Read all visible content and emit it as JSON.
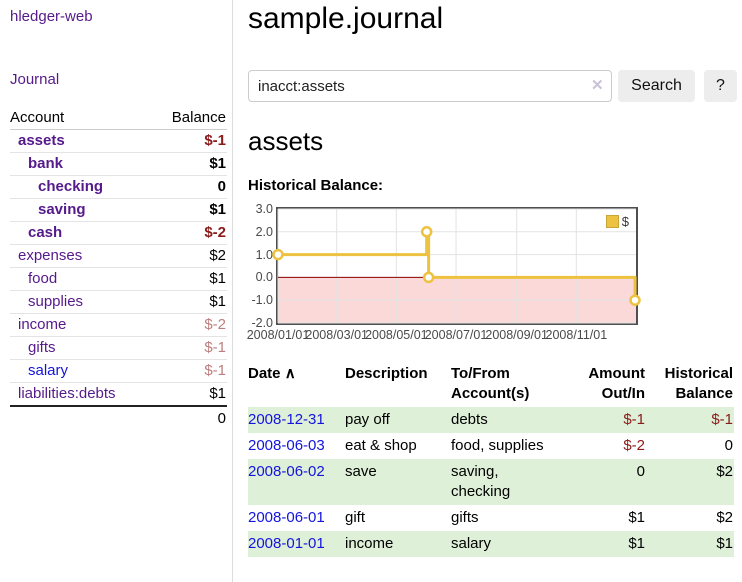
{
  "colors": {
    "link_purple": "#551a8b",
    "link_blue": "#1414dd",
    "neg_strong": "#8b1a1a",
    "neg_soft": "#bd7e7e",
    "row_green": "#dff0d8"
  },
  "sidebar": {
    "app_title": "hledger-web",
    "journal_link": "Journal",
    "account_header": "Account",
    "balance_header": "Balance",
    "accounts": [
      {
        "name": "assets",
        "balance": "$-1"
      },
      {
        "name": "bank",
        "balance": "$1"
      },
      {
        "name": "checking",
        "balance": "0"
      },
      {
        "name": "saving",
        "balance": "$1"
      },
      {
        "name": "cash",
        "balance": "$-2"
      },
      {
        "name": "expenses",
        "balance": "$2"
      },
      {
        "name": "food",
        "balance": "$1"
      },
      {
        "name": "supplies",
        "balance": "$1"
      },
      {
        "name": "income",
        "balance": "$-2"
      },
      {
        "name": "gifts",
        "balance": "$-1"
      },
      {
        "name": "salary",
        "balance": "$-1"
      },
      {
        "name": "liabilities:debts",
        "balance": "$1"
      }
    ],
    "total": "0"
  },
  "main": {
    "title": "sample.journal",
    "search": {
      "value": "inacct:assets",
      "clear_icon": "✕",
      "search_button": "Search",
      "help_button": "?"
    },
    "account_heading": "assets",
    "section_label": "Historical Balance:"
  },
  "chart_data": {
    "type": "line",
    "step": true,
    "title": "Historical Balance:",
    "series": [
      {
        "name": "$",
        "color": "#EDC240",
        "points": [
          [
            "2008-01-01",
            1
          ],
          [
            "2008-06-01",
            2
          ],
          [
            "2008-06-03",
            0
          ],
          [
            "2008-12-31",
            -1
          ]
        ]
      }
    ],
    "x_ticks": [
      "2008/01/01",
      "2008/03/01",
      "2008/05/01",
      "2008/07/01",
      "2008/09/01",
      "2008/11/01"
    ],
    "y_ticks": [
      "3.0",
      "2.0",
      "1.0",
      "0.0",
      "-1.0",
      "-2.0"
    ],
    "xlim": [
      "2008-01-01",
      "2009-01-01"
    ],
    "ylim": [
      -2,
      3
    ],
    "grid": true,
    "grid_color": "#e3e3e3",
    "negative_region_color": "#fbd9d9",
    "zero_line_color": "#8b0000",
    "legend": {
      "position": "top-right",
      "label": "$"
    }
  },
  "register": {
    "headers": {
      "date": "Date",
      "sort_caret": "∧",
      "description": "Description",
      "accounts": "To/From Account(s)",
      "amount": "Amount Out/In",
      "balance": "Historical Balance"
    },
    "rows": [
      {
        "date": "2008-12-31",
        "description": "pay off",
        "accounts": "debts",
        "amount": "$-1",
        "balance": "$-1"
      },
      {
        "date": "2008-06-03",
        "description": "eat & shop",
        "accounts": "food, supplies",
        "amount": "$-2",
        "balance": "0"
      },
      {
        "date": "2008-06-02",
        "description": "save",
        "accounts": "saving, checking",
        "amount": "0",
        "balance": "$2"
      },
      {
        "date": "2008-06-01",
        "description": "gift",
        "accounts": "gifts",
        "amount": "$1",
        "balance": "$2"
      },
      {
        "date": "2008-01-01",
        "description": "income",
        "accounts": "salary",
        "amount": "$1",
        "balance": "$1"
      }
    ]
  }
}
